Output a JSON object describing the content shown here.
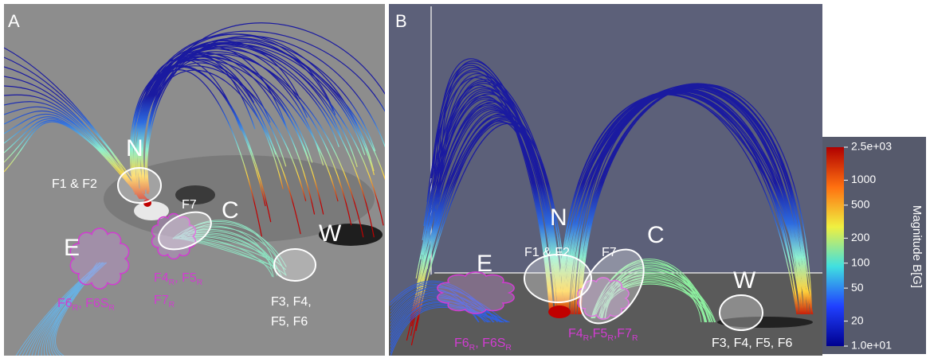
{
  "panels": [
    {
      "letter": "A",
      "labels": [
        {
          "parts": [
            "N"
          ],
          "color": "#ffffff"
        },
        {
          "parts": [
            "F1 & F2"
          ],
          "color": "#ffffff"
        },
        {
          "parts": [
            "F7"
          ],
          "color": "#ffffff"
        },
        {
          "parts": [
            "C"
          ],
          "color": "#ffffff"
        },
        {
          "parts": [
            "E"
          ],
          "color": "#ffffff"
        },
        {
          "parts": [
            "W"
          ],
          "color": "#ffffff"
        },
        {
          "parts": [
            "F4",
            {
              "sub": "R"
            },
            ", F5",
            {
              "sub": "R"
            }
          ],
          "color": "#d23cd2"
        },
        {
          "parts": [
            "F7",
            {
              "sub": "R"
            }
          ],
          "color": "#d23cd2"
        },
        {
          "parts": [
            "F6",
            {
              "sub": "R"
            },
            ", F6S",
            {
              "sub": "R"
            }
          ],
          "color": "#d23cd2"
        },
        {
          "parts": [
            "F3, F4,"
          ],
          "color": "#ffffff"
        },
        {
          "parts": [
            "F5, F6"
          ],
          "color": "#ffffff"
        }
      ]
    },
    {
      "letter": "B",
      "labels": [
        {
          "parts": [
            "N"
          ],
          "color": "#ffffff"
        },
        {
          "parts": [
            "F1 & F2"
          ],
          "color": "#ffffff"
        },
        {
          "parts": [
            "F7"
          ],
          "color": "#ffffff"
        },
        {
          "parts": [
            "C"
          ],
          "color": "#ffffff"
        },
        {
          "parts": [
            "E"
          ],
          "color": "#ffffff"
        },
        {
          "parts": [
            "W"
          ],
          "color": "#ffffff"
        },
        {
          "parts": [
            "F6",
            {
              "sub": "R"
            },
            ", F6S",
            {
              "sub": "R"
            }
          ],
          "color": "#d23cd2"
        },
        {
          "parts": [
            "F4",
            {
              "sub": "R"
            },
            ",F5",
            {
              "sub": "R"
            },
            ",F7",
            {
              "sub": "R"
            }
          ],
          "color": "#d23cd2"
        },
        {
          "parts": [
            "F3, F4, F5, F6"
          ],
          "color": "#ffffff"
        }
      ]
    }
  ],
  "colorbar": {
    "title": "Magnitude B[G]",
    "log_scale": true,
    "range": [
      10,
      2500
    ],
    "ticks": [
      {
        "value": 2500,
        "label": "2.5e+03"
      },
      1000,
      500,
      200,
      100,
      50,
      20,
      {
        "value": 10,
        "label": "1.0e+01"
      }
    ]
  }
}
